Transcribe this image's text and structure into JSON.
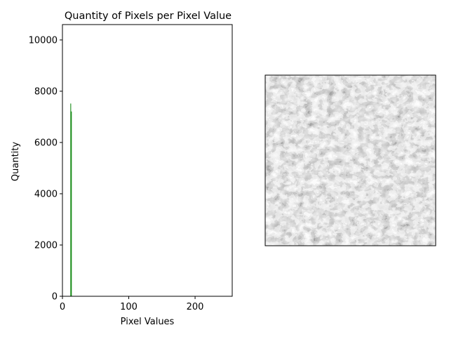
{
  "chart_data": {
    "type": "bar",
    "title": "Quantity of Pixels per Pixel Value",
    "xlabel": "Pixel Values",
    "ylabel": "Quantity",
    "xlim": [
      0,
      256
    ],
    "ylim": [
      0,
      10600
    ],
    "xticks": [
      0,
      100,
      200
    ],
    "yticks": [
      0,
      2000,
      4000,
      6000,
      8000,
      10000
    ],
    "grid": false,
    "bar_color": "#008000",
    "series": [
      {
        "x": [
          12,
          13
        ],
        "values": [
          7520,
          7210
        ]
      }
    ]
  },
  "image_panel": {
    "description_icon": "crowd-photo",
    "tone": "grayscale"
  }
}
